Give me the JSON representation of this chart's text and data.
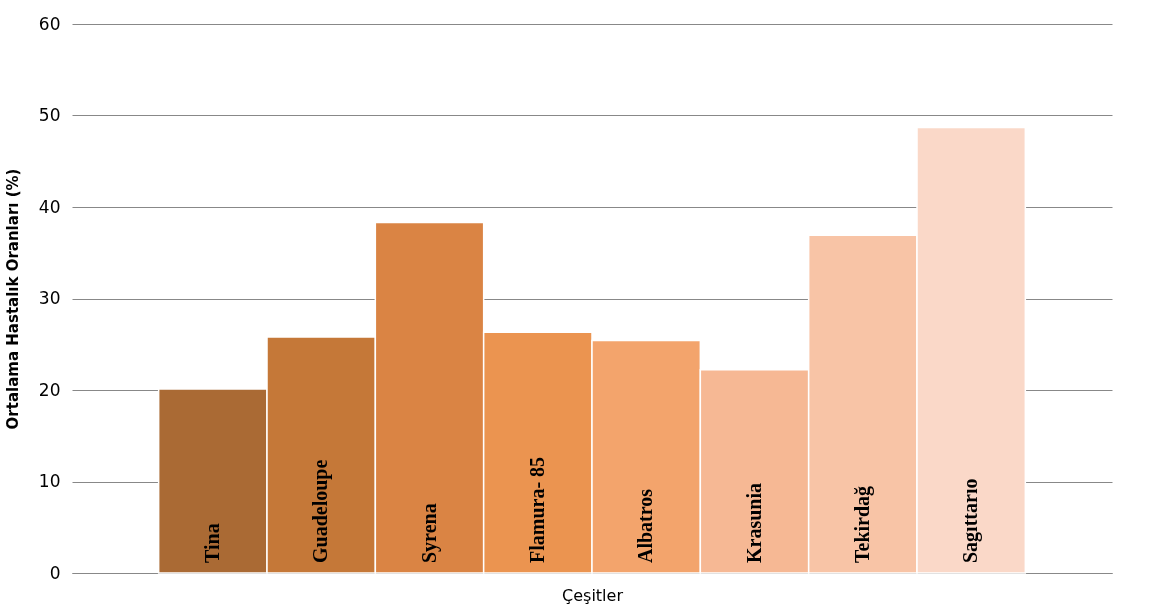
{
  "chart_data": {
    "type": "bar",
    "xlabel": "Çeşitler",
    "ylabel": "Ortalama Hastalık Oranları (%)",
    "categories": [
      "Tina",
      "Guadeloupe",
      "Syrena",
      "Flamura- 85",
      "Albatros",
      "Krasunia",
      "Tekirdağ",
      "Sagıttarıo"
    ],
    "values": [
      20.1,
      25.8,
      38.3,
      26.3,
      25.4,
      22.2,
      36.9,
      48.7
    ],
    "colors": [
      "#aa6a34",
      "#c57838",
      "#da8444",
      "#eb9450",
      "#f3a46c",
      "#f6b894",
      "#f8c4a6",
      "#fad8c8"
    ],
    "ylim": [
      0,
      60
    ],
    "yticks": [
      0,
      10,
      20,
      30,
      40,
      50,
      60
    ],
    "grid": "y"
  }
}
